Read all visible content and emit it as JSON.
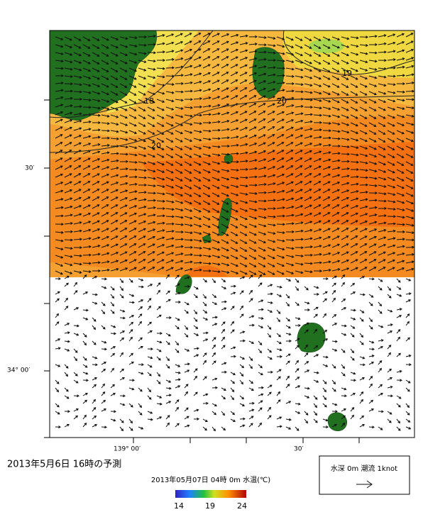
{
  "title": "2013年5月6日 16時の予測",
  "colorbar": {
    "caption": "2013年05月07日 04時 0m 水温(℃)",
    "ticks": [
      14,
      19,
      24
    ]
  },
  "legend": {
    "label": "水深 0m 潮流 1knot"
  },
  "axes": {
    "lat_labels": [
      "30′",
      "34° 00′"
    ],
    "lon_labels": [
      "139° 00′",
      "30′"
    ]
  },
  "contours": [
    "18",
    "19",
    "20",
    "20"
  ]
}
